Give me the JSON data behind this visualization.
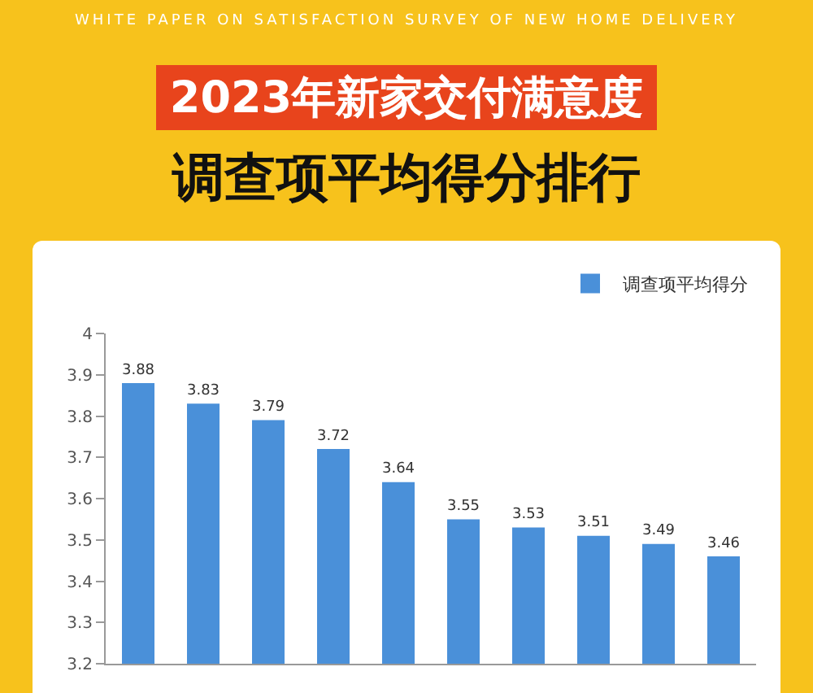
{
  "chart_data": {
    "type": "bar",
    "title": "2023年新家交付满意度",
    "subtitle": "调查项平均得分排行",
    "annotations": [
      "WHITE PAPER ON SATISFACTION SURVEY OF  NEW HOME DELIVERY"
    ],
    "categories": [
      null,
      null,
      null,
      null,
      null,
      null,
      null,
      null,
      null,
      null
    ],
    "series": [
      {
        "name": "调查项平均得分",
        "color": "#4a90d9",
        "values": [
          3.88,
          3.83,
          3.79,
          3.72,
          3.64,
          3.55,
          3.53,
          3.51,
          3.49,
          3.46
        ]
      }
    ],
    "data_labels": true,
    "ylim": [
      3.2,
      4
    ],
    "yticks": [
      3.2,
      3.3,
      3.4,
      3.5,
      3.6,
      3.7,
      3.8,
      3.9,
      4
    ],
    "grid": false,
    "legend": "top right"
  }
}
